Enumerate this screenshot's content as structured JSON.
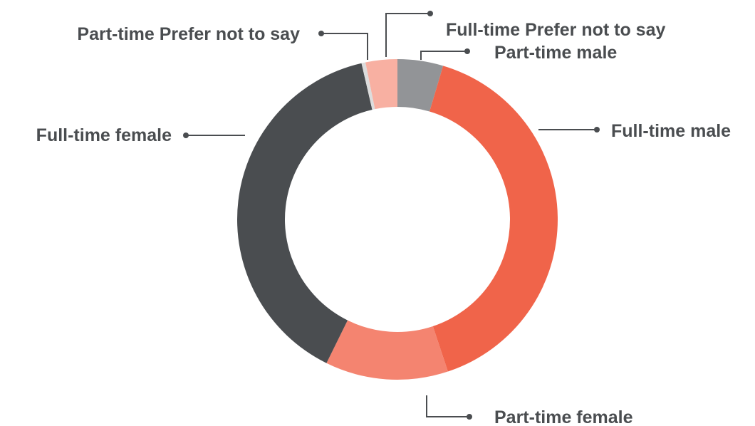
{
  "chart_data": {
    "type": "pie",
    "style": "donut",
    "title": "",
    "series": [
      {
        "name": "Part-time male",
        "value": 4.6,
        "color": "#929497"
      },
      {
        "name": "Full-time male",
        "value": 40.3,
        "color": "#f0644a"
      },
      {
        "name": "Part-time female",
        "value": 12.4,
        "color": "#f48470"
      },
      {
        "name": "Full-time female",
        "value": 39.1,
        "color": "#4a4d50"
      },
      {
        "name": "Part-time Prefer not to say",
        "value": 0.4,
        "color": "#dcdcdc"
      },
      {
        "name": "Full-time Prefer not to say",
        "value": 3.2,
        "color": "#f8b0a2"
      }
    ],
    "legend": "callout-labels"
  }
}
